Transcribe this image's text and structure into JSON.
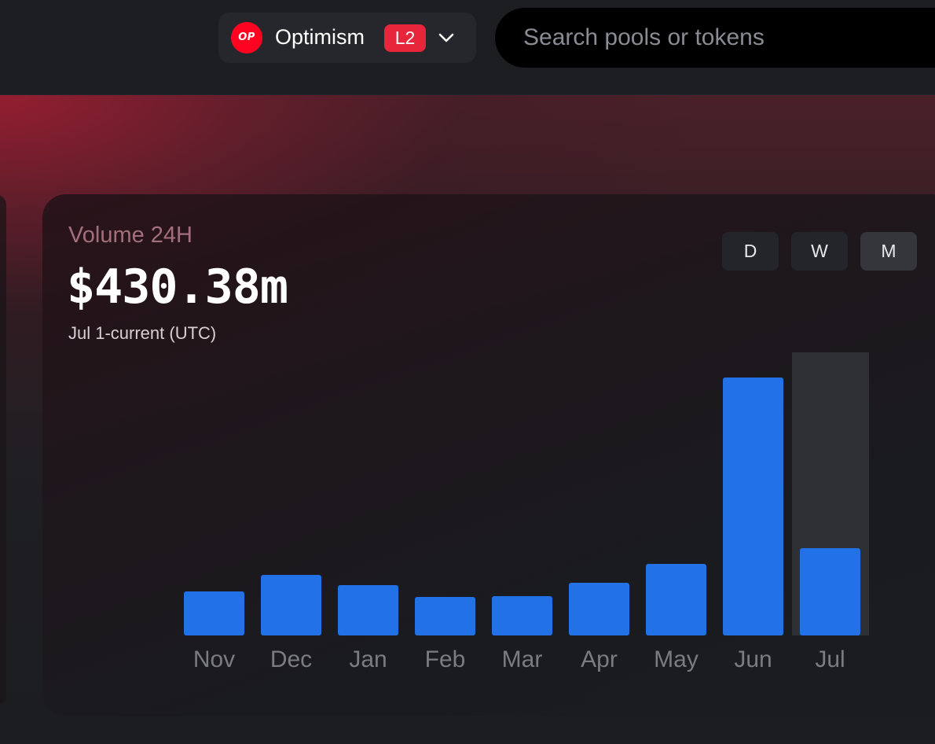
{
  "header": {
    "network": {
      "logo_text": "OP",
      "name": "Optimism",
      "badge": "L2",
      "icon": "chevron-down-icon"
    },
    "search": {
      "placeholder": "Search pools or tokens",
      "value": ""
    }
  },
  "card": {
    "label": "Volume 24H",
    "value": "$430.38m",
    "subtitle": "Jul 1-current (UTC)",
    "toggles": [
      {
        "label": "D",
        "active": false
      },
      {
        "label": "W",
        "active": false
      },
      {
        "label": "M",
        "active": true
      }
    ]
  },
  "colors": {
    "bar": "#2371e6",
    "highlight": "#2f3034",
    "accent_red": "#e8263b",
    "op_red": "#ff0420"
  },
  "chart_data": {
    "type": "bar",
    "title": "",
    "xlabel": "",
    "ylabel": "",
    "categories": [
      "Nov",
      "Dec",
      "Jan",
      "Feb",
      "Mar",
      "Apr",
      "May",
      "Jun",
      "Jul"
    ],
    "values": [
      56,
      77,
      64,
      49,
      50,
      67,
      91,
      328,
      111
    ],
    "highlighted_category": "Jul",
    "ylim": [
      0,
      360
    ],
    "grid": false,
    "legend": "none"
  }
}
